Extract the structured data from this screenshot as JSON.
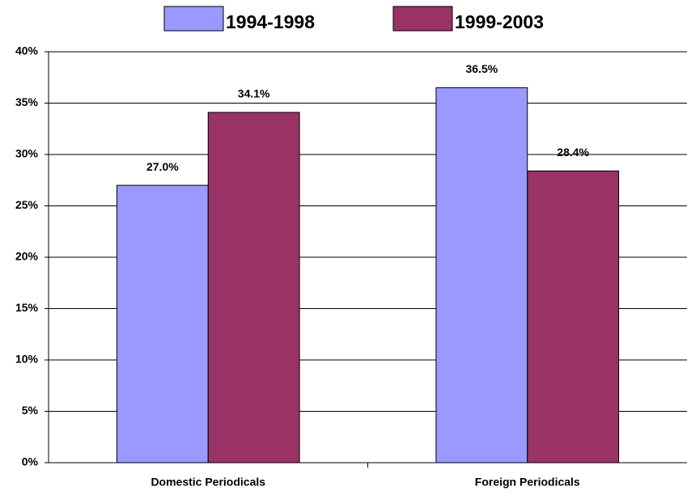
{
  "chart_data": {
    "type": "bar",
    "categories": [
      "Domestic Periodicals",
      "Foreign Periodicals"
    ],
    "series": [
      {
        "name": "1994-1998",
        "color": "#9999ff",
        "values": [
          27.0,
          36.5
        ],
        "value_labels": [
          "27.0%",
          "36.5%"
        ]
      },
      {
        "name": "1999-2003",
        "color": "#993366",
        "values": [
          34.1,
          28.4
        ],
        "value_labels": [
          "34.1%",
          "28.4%"
        ]
      }
    ],
    "ylim": [
      0,
      40
    ],
    "yticks": [
      {
        "value": 0,
        "label": "0%"
      },
      {
        "value": 5,
        "label": "5%"
      },
      {
        "value": 10,
        "label": "10%"
      },
      {
        "value": 15,
        "label": "15%"
      },
      {
        "value": 20,
        "label": "20%"
      },
      {
        "value": 25,
        "label": "25%"
      },
      {
        "value": 30,
        "label": "30%"
      },
      {
        "value": 35,
        "label": "35%"
      },
      {
        "value": 40,
        "label": "40%"
      }
    ],
    "grid": true,
    "legend": "top"
  }
}
